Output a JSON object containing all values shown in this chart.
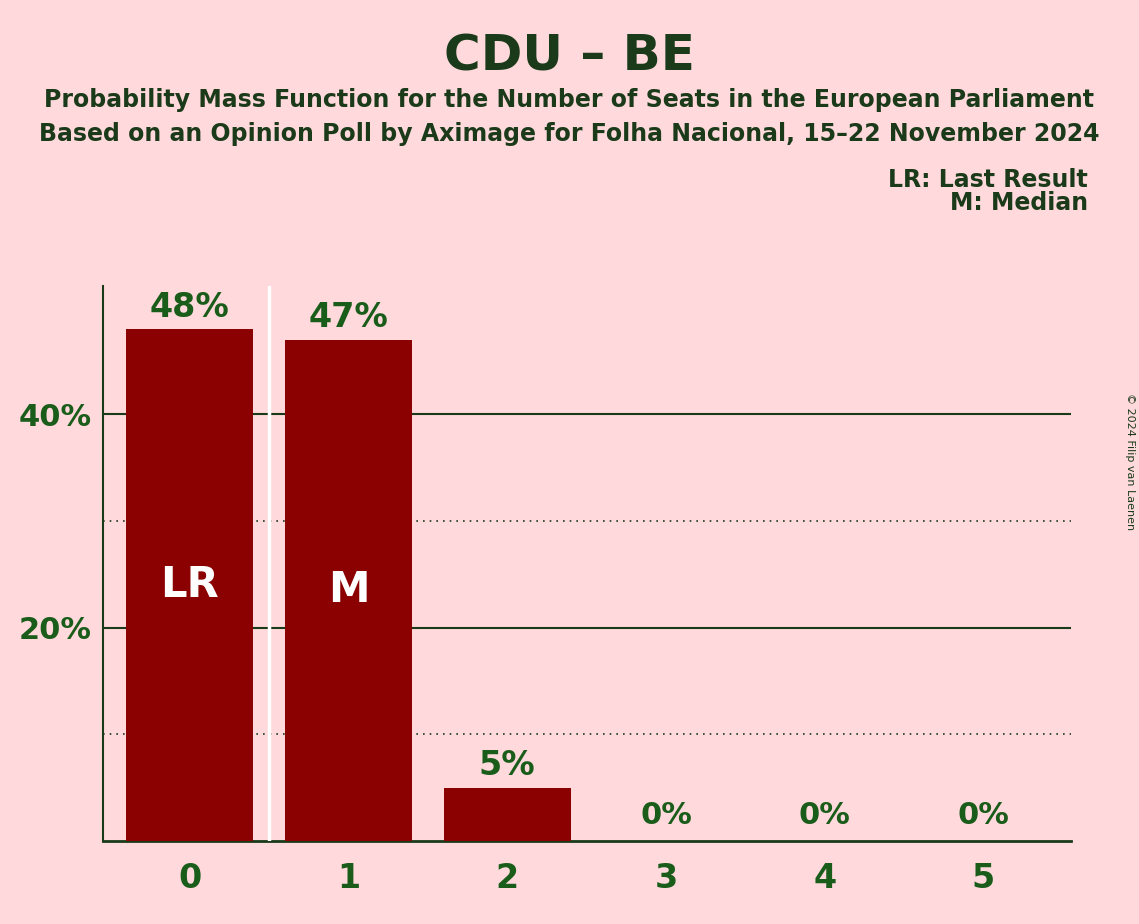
{
  "title": "CDU – BE",
  "subtitle_line1": "Probability Mass Function for the Number of Seats in the European Parliament",
  "subtitle_line2": "Based on an Opinion Poll by Aximage for Folha Nacional, 15–22 November 2024",
  "copyright": "© 2024 Filip van Laenen",
  "categories": [
    0,
    1,
    2,
    3,
    4,
    5
  ],
  "values": [
    0.48,
    0.47,
    0.05,
    0.0,
    0.0,
    0.0
  ],
  "bar_color": "#8B0000",
  "background_color": "#FFD9DC",
  "text_color": "#1A5C1A",
  "title_color": "#1A3A1A",
  "bar_labels": [
    "48%",
    "47%",
    "5%",
    "0%",
    "0%",
    "0%"
  ],
  "bar_inner_labels": [
    "LR",
    "M",
    "",
    "",
    "",
    ""
  ],
  "legend_lr": "LR: Last Result",
  "legend_m": "M: Median",
  "ylim": [
    0,
    0.52
  ],
  "solid_grid_lines": [
    0.2,
    0.4
  ],
  "dotted_grid_lines": [
    0.1,
    0.3
  ],
  "ytick_positions": [
    0.2,
    0.4
  ],
  "ytick_labels": [
    "20%",
    "40%"
  ]
}
